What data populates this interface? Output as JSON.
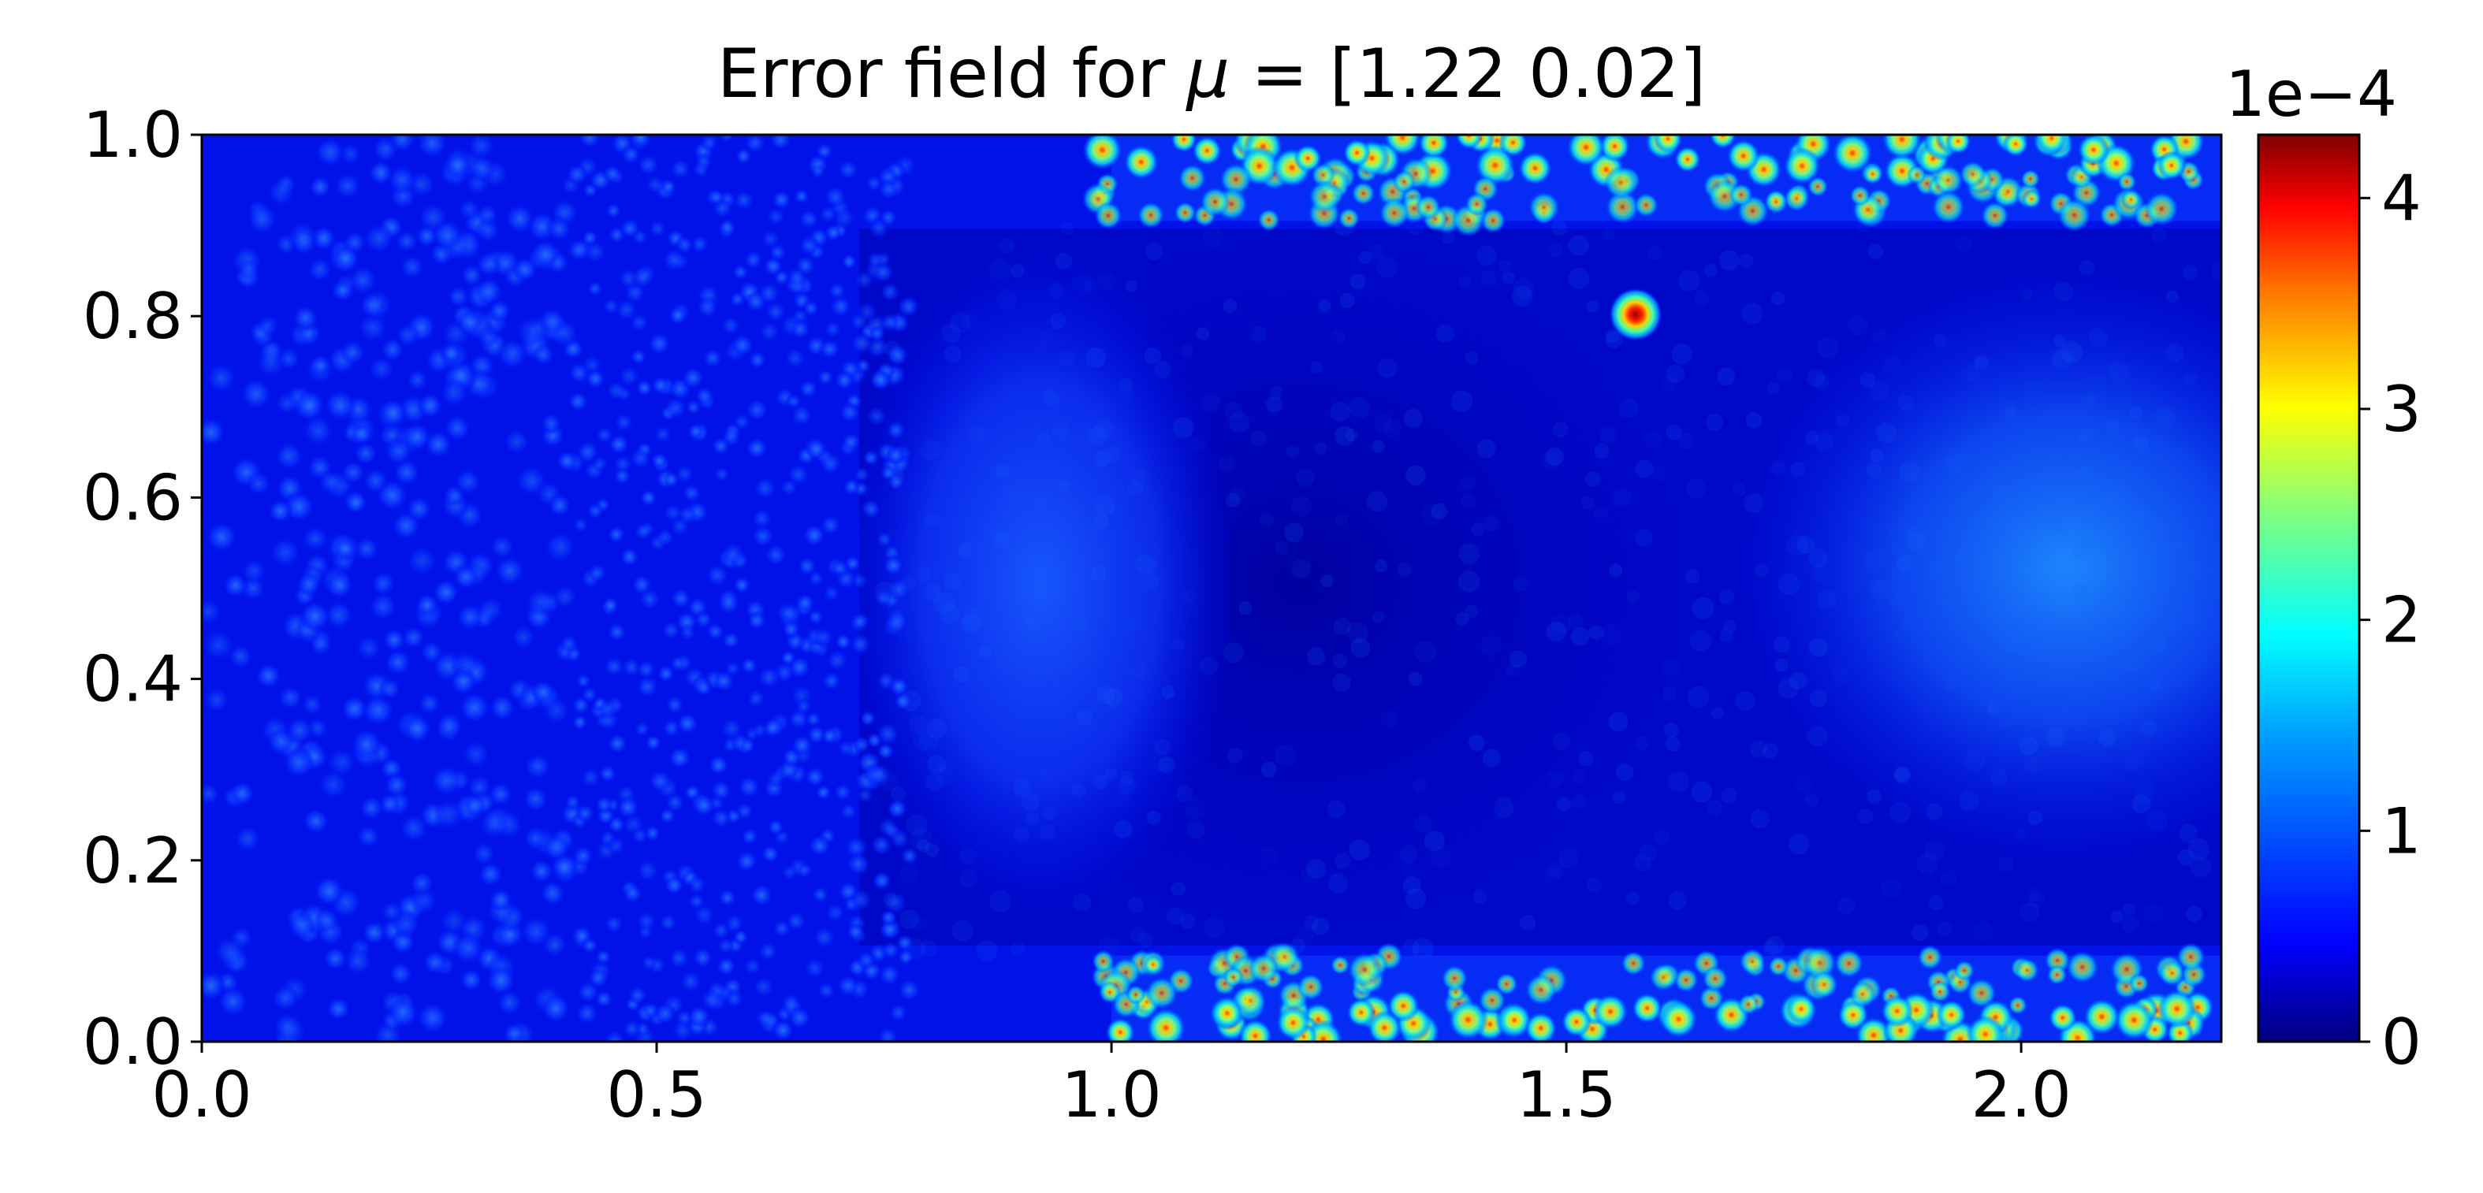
{
  "chart_data": {
    "type": "heatmap",
    "title": "Error field for μ = [1.22 0.02]",
    "title_prefix": "Error field for ",
    "title_mu": "μ",
    "title_suffix": " = [1.22 0.02]",
    "xlim": [
      0.0,
      2.22
    ],
    "ylim": [
      0.0,
      1.0
    ],
    "x_ticks": [
      0.0,
      0.5,
      1.0,
      1.5,
      2.0
    ],
    "x_tick_labels": [
      "0.0",
      "0.5",
      "1.0",
      "1.5",
      "2.0"
    ],
    "y_ticks": [
      0.0,
      0.2,
      0.4,
      0.6,
      0.8,
      1.0
    ],
    "y_tick_labels": [
      "0.0",
      "0.2",
      "0.4",
      "0.6",
      "0.8",
      "1.0"
    ],
    "colormap": "jet",
    "colorbar": {
      "range": [
        0,
        4.3
      ],
      "ticks": [
        0,
        1,
        2,
        3,
        4
      ],
      "tick_labels": [
        "0",
        "1",
        "2",
        "3",
        "4"
      ],
      "multiplier_label": "1e−4"
    },
    "features": [
      {
        "region": "left mesh region",
        "x_range": [
          0.0,
          0.75
        ],
        "y_range": [
          0.0,
          1.0
        ],
        "level": 0.6
      },
      {
        "region": "central dark band",
        "x_range": [
          0.75,
          2.22
        ],
        "y_range": [
          0.1,
          0.9
        ],
        "level": 0.2
      },
      {
        "region": "left bulge",
        "x": 0.95,
        "y": 0.5,
        "level": 1.0
      },
      {
        "region": "right bulge",
        "x": 2.05,
        "y": 0.55,
        "level": 1.1
      },
      {
        "region": "top wall band",
        "x_range": [
          1.0,
          2.22
        ],
        "y_range": [
          0.9,
          1.0
        ],
        "peak": 4.2
      },
      {
        "region": "bottom wall band",
        "x_range": [
          1.0,
          2.22
        ],
        "y_range": [
          0.0,
          0.1
        ],
        "peak": 4.2
      },
      {
        "region": "isolated hotspot",
        "x": 1.58,
        "y": 0.8,
        "peak": 4.2
      }
    ],
    "colors": {
      "jet_0": "#00007f",
      "jet_1": "#0000ff",
      "jet_2": "#007fff",
      "jet_3": "#00ffff",
      "jet_4": "#7fff7f",
      "jet_5": "#ffff00",
      "jet_6": "#ff7f00",
      "jet_7": "#ff0000",
      "jet_8": "#7f0000"
    }
  }
}
